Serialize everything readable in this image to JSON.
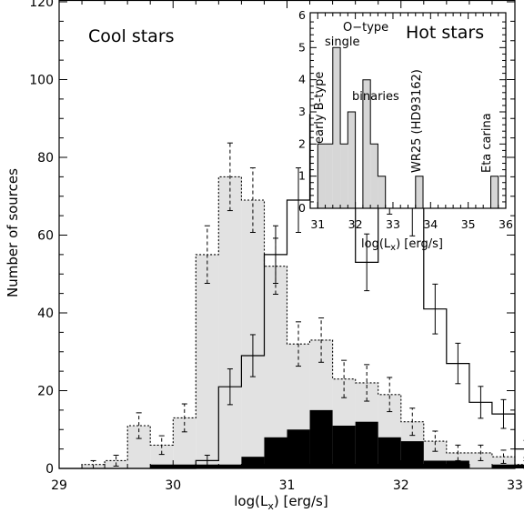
{
  "chart_data": [
    {
      "type": "histogram",
      "label": "Cool stars",
      "xlabel": "log(L_x) [erg/s]",
      "ylabel": "Number of sources",
      "xlim": [
        29,
        33
      ],
      "ylim": [
        0,
        120
      ],
      "xticks": [
        "29",
        "30",
        "31",
        "32",
        "33"
      ],
      "yticks": [
        "0",
        "20",
        "40",
        "60",
        "80",
        "100",
        "120"
      ],
      "bin_width": 0.2,
      "x_start": 29.0,
      "series": [
        {
          "style": "solid-outline",
          "values": [
            0,
            0,
            0,
            0,
            0,
            0,
            2,
            21,
            29,
            55,
            69,
            91,
            104,
            53,
            74,
            68,
            41,
            27,
            17,
            14,
            5,
            2,
            4,
            3,
            3,
            4,
            5,
            0,
            1,
            0
          ],
          "errors": [
            0,
            0,
            0,
            0,
            0,
            0,
            1.4,
            4.6,
            5.4,
            7.4,
            8.3,
            9.5,
            10.2,
            7.3,
            8.6,
            8.2,
            6.4,
            5.2,
            4.1,
            3.7,
            2.2,
            1.4,
            2.0,
            1.7,
            1.7,
            2.0,
            2.2,
            0,
            1.0,
            0
          ]
        },
        {
          "style": "dotted-gray-filled",
          "values": [
            0,
            1,
            2,
            11,
            6,
            13,
            55,
            75,
            69,
            52,
            32,
            33,
            23,
            22,
            19,
            12,
            7,
            4,
            4,
            3,
            1,
            2,
            3,
            1,
            3,
            2,
            2,
            1,
            2,
            1
          ],
          "errors": [
            0,
            1.0,
            1.4,
            3.3,
            2.4,
            3.6,
            7.4,
            8.7,
            8.3,
            7.2,
            5.7,
            5.7,
            4.8,
            4.7,
            4.4,
            3.5,
            2.6,
            2.0,
            2.0,
            1.7,
            1.0,
            1.4,
            1.7,
            1.0,
            1.7,
            1.4,
            1.4,
            1.0,
            1.4,
            1.0
          ]
        },
        {
          "style": "black-filled",
          "values": [
            0,
            0,
            0,
            0,
            1,
            1,
            1,
            1,
            3,
            8,
            10,
            15,
            11,
            12,
            8,
            7,
            2,
            2,
            0,
            1,
            1,
            0,
            0,
            1,
            0,
            0,
            0,
            0,
            0,
            0
          ]
        }
      ]
    },
    {
      "type": "histogram",
      "label": "Hot stars",
      "xlabel": "log(L_x) [erg/s]",
      "xlim": [
        30.8,
        36.0
      ],
      "ylim": [
        0,
        6
      ],
      "xticks": [
        "31",
        "32",
        "33",
        "34",
        "35",
        "36"
      ],
      "yticks": [
        "0",
        "1",
        "2",
        "3",
        "4",
        "5",
        "6"
      ],
      "bin_width": 0.2,
      "x_start": 31.0,
      "values": [
        2,
        2,
        5,
        2,
        3,
        0,
        4,
        2,
        1,
        0,
        0,
        0,
        0,
        1,
        0,
        0,
        0,
        0,
        0,
        0,
        0,
        0,
        0,
        1
      ],
      "annotations": [
        "early B-type",
        "O-type single",
        "binaries",
        "WR25 (HD93162)",
        "Eta carina"
      ]
    }
  ]
}
